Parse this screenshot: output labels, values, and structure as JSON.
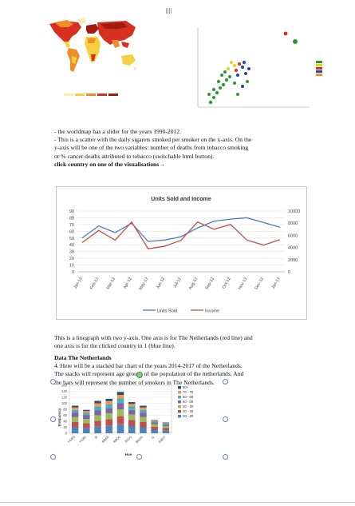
{
  "colors": {
    "map_deep": "#a01c12",
    "map_red": "#d7301f",
    "map_orange": "#f28c28",
    "map_yellow": "#f7d040",
    "map_pale": "#fde7b0",
    "scatter_green": "#2e9a2e",
    "scatter_yellow": "#e8d21c",
    "scatter_blue": "#2a3fb5",
    "line_blue": "#4a7ebb",
    "line_red": "#c0504d",
    "text_link": "#1a1a1a"
  },
  "paragraph1": {
    "line1": "- the worldmap has a slider for the years 1990-2012.",
    "line2": "- This is a scatter with the daily sigarets smoked per smoker on the x-axis. On the",
    "line3": "y-axis will be one of the two variables: number of deaths from tobacco smoking",
    "line4": "or % cancer deaths attributed to tobacco (switchable html button).",
    "line5": "click country  on one of the visualisations→"
  },
  "line_chart": {
    "title": "Units Sold and Income",
    "legend_units": "Units Sold",
    "legend_income": "Income"
  },
  "paragraph2": {
    "line1": "This is a linegraph with two y-axis. One axis is for The Netherlands (red line) and",
    "line2": "one axis is for the clicked country in 1 (blue line)."
  },
  "paragraph3": {
    "heading": "Data The Netherlands",
    "line1": "4. Here will be a stacked bar chart of the years 2014-2017 of the Netherlands.",
    "line2": "The stacks will represent age groups of the population of the netherlands. And",
    "line3": "the bars will represent the number of smokers in The Netherlands."
  },
  "bar_chart": {
    "ylabel": "Frequency",
    "xlabel": "Hue"
  },
  "chart_data": [
    {
      "type": "line",
      "title": "Units Sold and Income",
      "categories": [
        "Jan-12",
        "Feb-12",
        "Mar-12",
        "Apr-12",
        "May-12",
        "Jun-12",
        "Jul-12",
        "Aug-12",
        "Sep-12",
        "Oct-12",
        "Nov-12",
        "Dec-12",
        "Jan-13"
      ],
      "series": [
        {
          "name": "Units Sold",
          "axis": "left",
          "values": [
            50,
            68,
            58,
            72,
            45,
            47,
            52,
            65,
            75,
            78,
            80,
            73,
            66
          ]
        },
        {
          "name": "Income",
          "axis": "right",
          "values": [
            4800,
            6800,
            5200,
            8200,
            3800,
            4200,
            5200,
            8200,
            7000,
            7800,
            5200,
            4400,
            5300
          ]
        }
      ],
      "yticks_left": [
        "0",
        "10",
        "20",
        "30",
        "40",
        "50",
        "60",
        "70",
        "80",
        "90"
      ],
      "yticks_right": [
        "0",
        "2000",
        "4000",
        "6000",
        "8000",
        "10000"
      ],
      "ylim_left": [
        0,
        90
      ],
      "ylim_right": [
        0,
        10000
      ],
      "legend": "bottom",
      "grid": true
    },
    {
      "type": "bar",
      "stacked": true,
      "xlabel": "Hue",
      "ylabel": "Frequency",
      "categories": [
        "YG85",
        "YG80",
        "B",
        "RB65",
        "RB00",
        "B100",
        "BG00",
        "G",
        "G85Y"
      ],
      "yticks": [
        "0",
        "20",
        "40",
        "60",
        "80",
        "100",
        "120",
        "140",
        "160"
      ],
      "ylim": [
        0,
        160
      ],
      "series": [
        {
          "name": "20 - 29",
          "values": [
            20,
            18,
            22,
            25,
            30,
            24,
            20,
            12,
            10
          ]
        },
        {
          "name": "30 - 39",
          "values": [
            18,
            16,
            20,
            22,
            26,
            20,
            18,
            10,
            8
          ]
        },
        {
          "name": "40 - 49",
          "values": [
            16,
            14,
            18,
            20,
            24,
            18,
            16,
            8,
            6
          ]
        },
        {
          "name": "50 - 59",
          "values": [
            14,
            12,
            16,
            16,
            20,
            16,
            14,
            6,
            4
          ]
        },
        {
          "name": "60 - 69",
          "values": [
            10,
            8,
            14,
            14,
            16,
            12,
            10,
            4,
            4
          ]
        },
        {
          "name": "70 - 79",
          "values": [
            8,
            6,
            10,
            10,
            12,
            8,
            8,
            2,
            2
          ]
        },
        {
          "name": "80+",
          "values": [
            6,
            4,
            8,
            8,
            10,
            6,
            6,
            2,
            2
          ]
        }
      ],
      "series_colors": [
        "#4f81bd",
        "#c0504d",
        "#9bbb59",
        "#8064a2",
        "#4bacc6",
        "#f79646",
        "#2c4d75"
      ],
      "legend": "right"
    }
  ]
}
